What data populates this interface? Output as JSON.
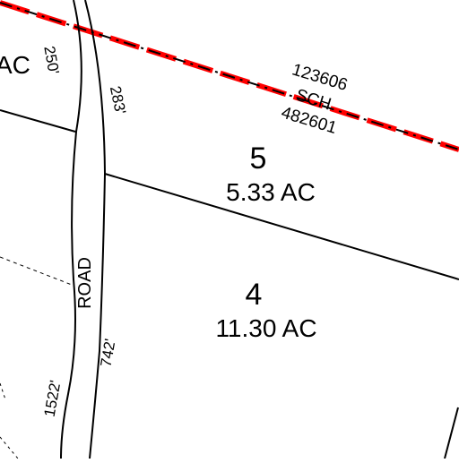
{
  "map": {
    "parcels": [
      {
        "lot": "5",
        "area": "5.33 AC"
      },
      {
        "lot": "4",
        "area": "11.30 AC"
      }
    ],
    "partial_area_label": "AC",
    "road_label": "ROAD",
    "dimensions": {
      "west_upper": "250'",
      "east_upper": "283'",
      "east_lower": "742'",
      "west_lower": "1522'"
    },
    "boundary_annotation": {
      "top_number": "123606",
      "label": "SCH",
      "bottom_number": "482601"
    },
    "colors": {
      "boundary_highlight": "#ff0000",
      "lines": "#000000",
      "background": "#ffffff"
    }
  }
}
